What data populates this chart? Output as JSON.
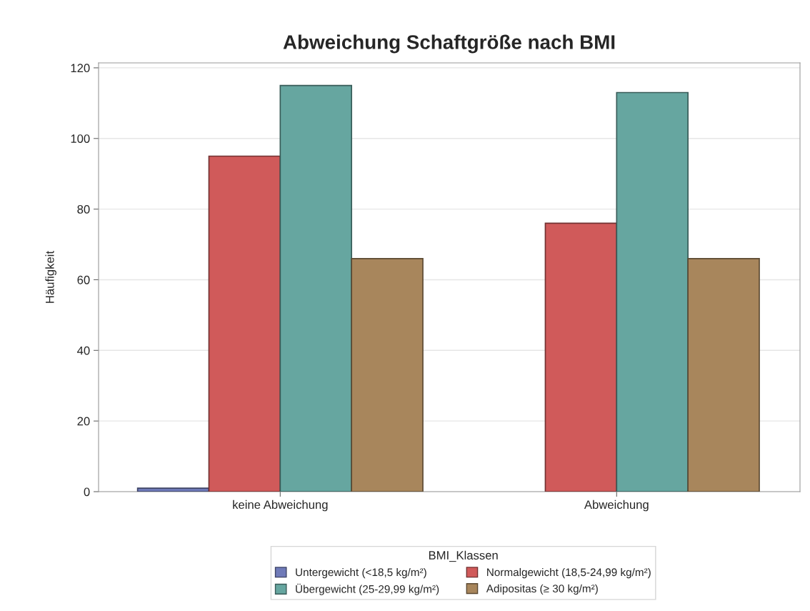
{
  "chart_data": {
    "type": "bar",
    "title": "Abweichung Schaftgröße nach BMI",
    "ylabel": "Häufigkeit",
    "legend_title": "BMI_Klassen",
    "categories": [
      "keine Abweichung",
      "Abweichung"
    ],
    "series": [
      {
        "name": "Untergewicht (<18,5 kg/m²)",
        "color": "#6f7ab8",
        "values": [
          1,
          null
        ]
      },
      {
        "name": "Normalgewicht (18,5-24,99 kg/m²)",
        "color": "#d05a5a",
        "values": [
          95,
          76
        ]
      },
      {
        "name": "Übergewicht (25-29,99 kg/m²)",
        "color": "#66a6a0",
        "values": [
          115,
          113
        ]
      },
      {
        "name": "Adipositas (≥ 30 kg/m²)",
        "color": "#a8865c",
        "values": [
          66,
          66
        ]
      }
    ],
    "ylim": [
      0,
      121.4
    ],
    "yticks": [
      0,
      20,
      40,
      60,
      80,
      100,
      120
    ],
    "grid": "y",
    "legend": "bottom"
  }
}
